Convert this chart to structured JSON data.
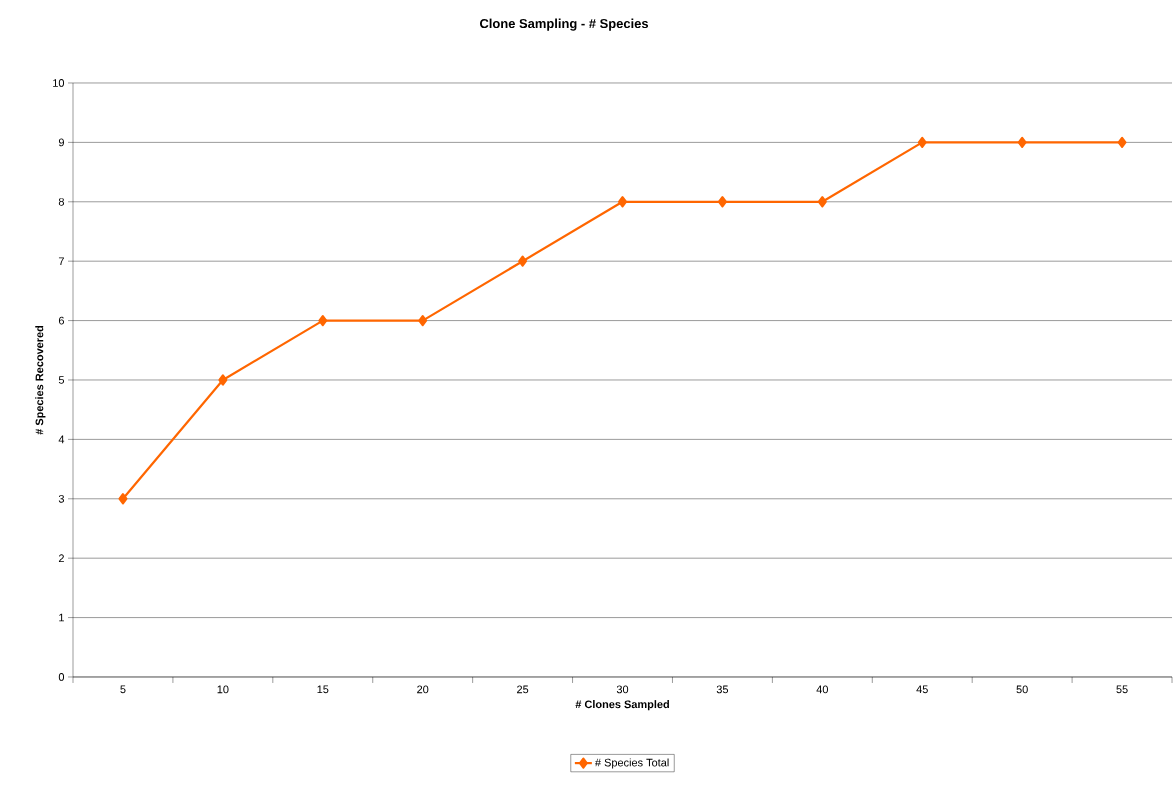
{
  "chart_data": {
    "type": "line",
    "title": "Clone Sampling - # Species",
    "xlabel": "# Clones Sampled",
    "ylabel": "# Species Recovered",
    "categories": [
      "5",
      "10",
      "15",
      "20",
      "25",
      "30",
      "35",
      "40",
      "45",
      "50",
      "55"
    ],
    "series": [
      {
        "name": "# Species Total",
        "color": "#ff6600",
        "values": [
          3,
          5,
          6,
          6,
          7,
          8,
          8,
          8,
          9,
          9,
          9
        ]
      }
    ],
    "ylim": [
      0,
      10
    ],
    "yticks": [
      0,
      1,
      2,
      3,
      4,
      5,
      6,
      7,
      8,
      9,
      10
    ],
    "grid": "y",
    "legend": "bottom",
    "marker": "diamond",
    "line_style": "solid"
  }
}
